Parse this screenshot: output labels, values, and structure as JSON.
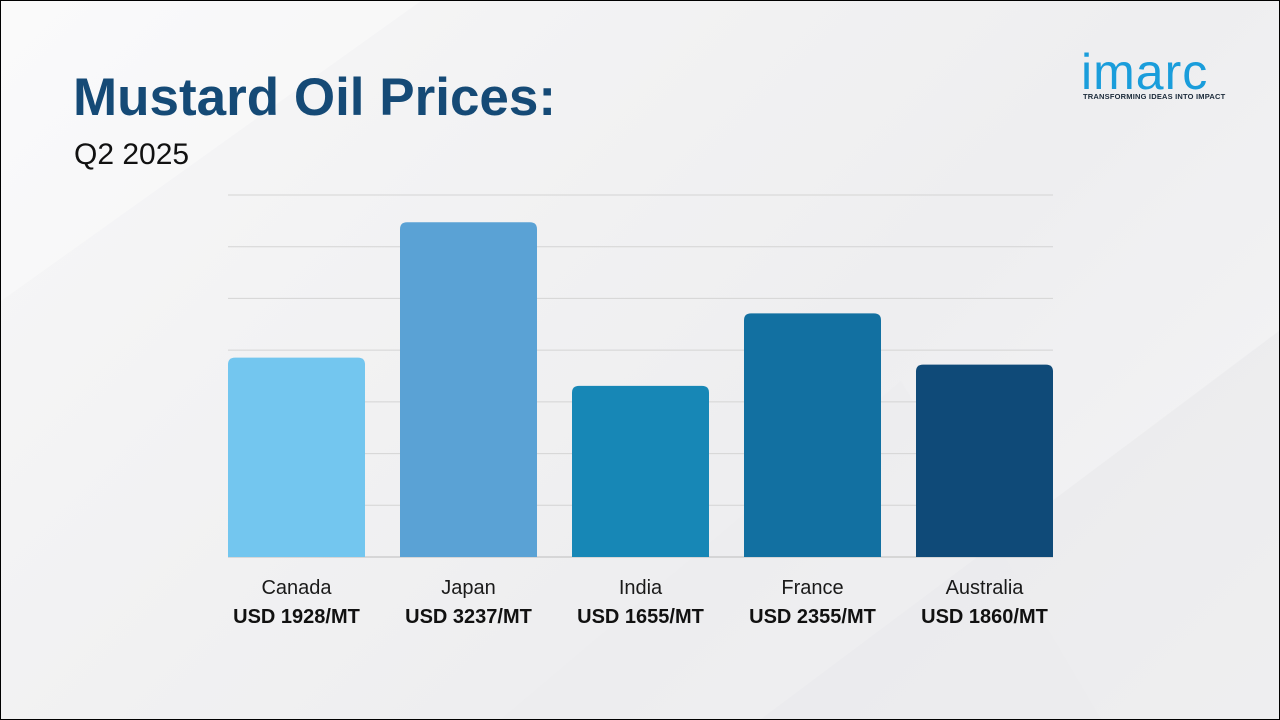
{
  "header": {
    "title": "Mustard Oil Prices:",
    "subtitle": "Q2 2025"
  },
  "logo": {
    "word": "imarc",
    "tagline": "TRANSFORMING IDEAS INTO IMPACT",
    "color": "#1a9ddb"
  },
  "chart_data": {
    "type": "bar",
    "title": "Mustard Oil Prices:",
    "subtitle": "Q2 2025",
    "xlabel": "",
    "ylabel": "",
    "categories": [
      "Canada",
      "Japan",
      "India",
      "France",
      "Australia"
    ],
    "values": [
      1928,
      3237,
      1655,
      2355,
      1860
    ],
    "value_labels": [
      "USD 1928/MT",
      "USD 3237/MT",
      "USD 1655/MT",
      "USD 2355/MT",
      "USD 1860/MT"
    ],
    "unit": "USD/MT",
    "ylim": [
      0,
      3500
    ],
    "grid": true,
    "legend": "none",
    "colors": [
      "#73c6ef",
      "#5aa2d5",
      "#1787b6",
      "#1270a1",
      "#0f4a78"
    ]
  }
}
